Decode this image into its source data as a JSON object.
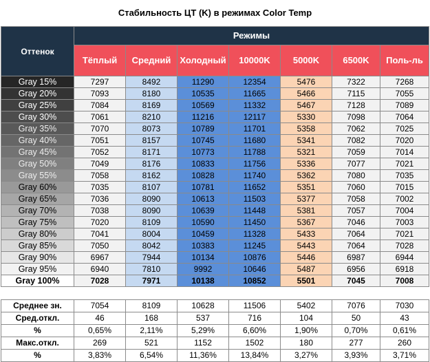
{
  "title": "Стабильность ЦТ (K) в режимах Color Temp",
  "header": {
    "row_label": "Оттенок",
    "modes_label": "Режимы"
  },
  "colors": {
    "dark_header": "#1f3347",
    "col_header": "#f0505a",
    "warm": "#f2f2f2",
    "medium": "#c5d9f1",
    "cold": "#5b8fd9",
    "k10000": "#5b8fd9",
    "k5000": "#fbd4b4",
    "k6500": "#f2f2f2",
    "user": "#f2f2f2"
  },
  "chart_data": {
    "type": "table",
    "columns": [
      "Тёплый",
      "Средний",
      "Холодный",
      "10000K",
      "5000K",
      "6500K",
      "Поль-ль"
    ],
    "rows": [
      {
        "label": "Gray 15%",
        "values": [
          "7297",
          "8492",
          "11290",
          "12354",
          "5476",
          "7322",
          "7268"
        ]
      },
      {
        "label": "Gray 20%",
        "values": [
          "7093",
          "8180",
          "10535",
          "11665",
          "5466",
          "7115",
          "7055"
        ]
      },
      {
        "label": "Gray 25%",
        "values": [
          "7084",
          "8169",
          "10569",
          "11332",
          "5467",
          "7128",
          "7089"
        ]
      },
      {
        "label": "Gray 30%",
        "values": [
          "7061",
          "8210",
          "11216",
          "12117",
          "5330",
          "7098",
          "7064"
        ]
      },
      {
        "label": "Gray 35%",
        "values": [
          "7070",
          "8073",
          "10789",
          "11701",
          "5358",
          "7062",
          "7025"
        ]
      },
      {
        "label": "Gray 40%",
        "values": [
          "7051",
          "8157",
          "10745",
          "11680",
          "5341",
          "7082",
          "7020"
        ]
      },
      {
        "label": "Gray 45%",
        "values": [
          "7052",
          "8171",
          "10773",
          "11788",
          "5321",
          "7059",
          "7014"
        ]
      },
      {
        "label": "Gray 50%",
        "values": [
          "7049",
          "8176",
          "10833",
          "11756",
          "5336",
          "7077",
          "7021"
        ]
      },
      {
        "label": "Gray 55%",
        "values": [
          "7058",
          "8162",
          "10828",
          "11740",
          "5362",
          "7080",
          "7035"
        ]
      },
      {
        "label": "Gray 60%",
        "values": [
          "7035",
          "8107",
          "10781",
          "11652",
          "5351",
          "7060",
          "7015"
        ]
      },
      {
        "label": "Gray 65%",
        "values": [
          "7036",
          "8090",
          "10613",
          "11503",
          "5377",
          "7058",
          "7002"
        ]
      },
      {
        "label": "Gray 70%",
        "values": [
          "7038",
          "8090",
          "10639",
          "11448",
          "5381",
          "7057",
          "7004"
        ]
      },
      {
        "label": "Gray 75%",
        "values": [
          "7020",
          "8109",
          "10590",
          "11450",
          "5367",
          "7046",
          "7003"
        ]
      },
      {
        "label": "Gray 80%",
        "values": [
          "7041",
          "8004",
          "10459",
          "11328",
          "5433",
          "7064",
          "7021"
        ]
      },
      {
        "label": "Gray 85%",
        "values": [
          "7050",
          "8042",
          "10383",
          "11245",
          "5443",
          "7064",
          "7028"
        ]
      },
      {
        "label": "Gray 90%",
        "values": [
          "6967",
          "7944",
          "10134",
          "10876",
          "5446",
          "6987",
          "6944"
        ]
      },
      {
        "label": "Gray 95%",
        "values": [
          "6940",
          "7810",
          "9992",
          "10646",
          "5487",
          "6956",
          "6918"
        ]
      },
      {
        "label": "Gray 100%",
        "values": [
          "7028",
          "7971",
          "10138",
          "10852",
          "5501",
          "7045",
          "7008"
        ]
      }
    ],
    "stats": [
      {
        "label": "Среднее зн.",
        "values": [
          "7054",
          "8109",
          "10628",
          "11506",
          "5402",
          "7076",
          "7030"
        ]
      },
      {
        "label": "Сред.откл.",
        "values": [
          "46",
          "168",
          "537",
          "716",
          "104",
          "50",
          "43"
        ]
      },
      {
        "label": "%",
        "values": [
          "0,65%",
          "2,11%",
          "5,29%",
          "6,60%",
          "1,90%",
          "0,70%",
          "0,61%"
        ]
      },
      {
        "label": "Макс.откл.",
        "values": [
          "269",
          "521",
          "1152",
          "1502",
          "180",
          "277",
          "260"
        ]
      },
      {
        "label": "%",
        "values": [
          "3,83%",
          "6,54%",
          "11,36%",
          "13,84%",
          "3,27%",
          "3,93%",
          "3,71%"
        ]
      }
    ]
  }
}
